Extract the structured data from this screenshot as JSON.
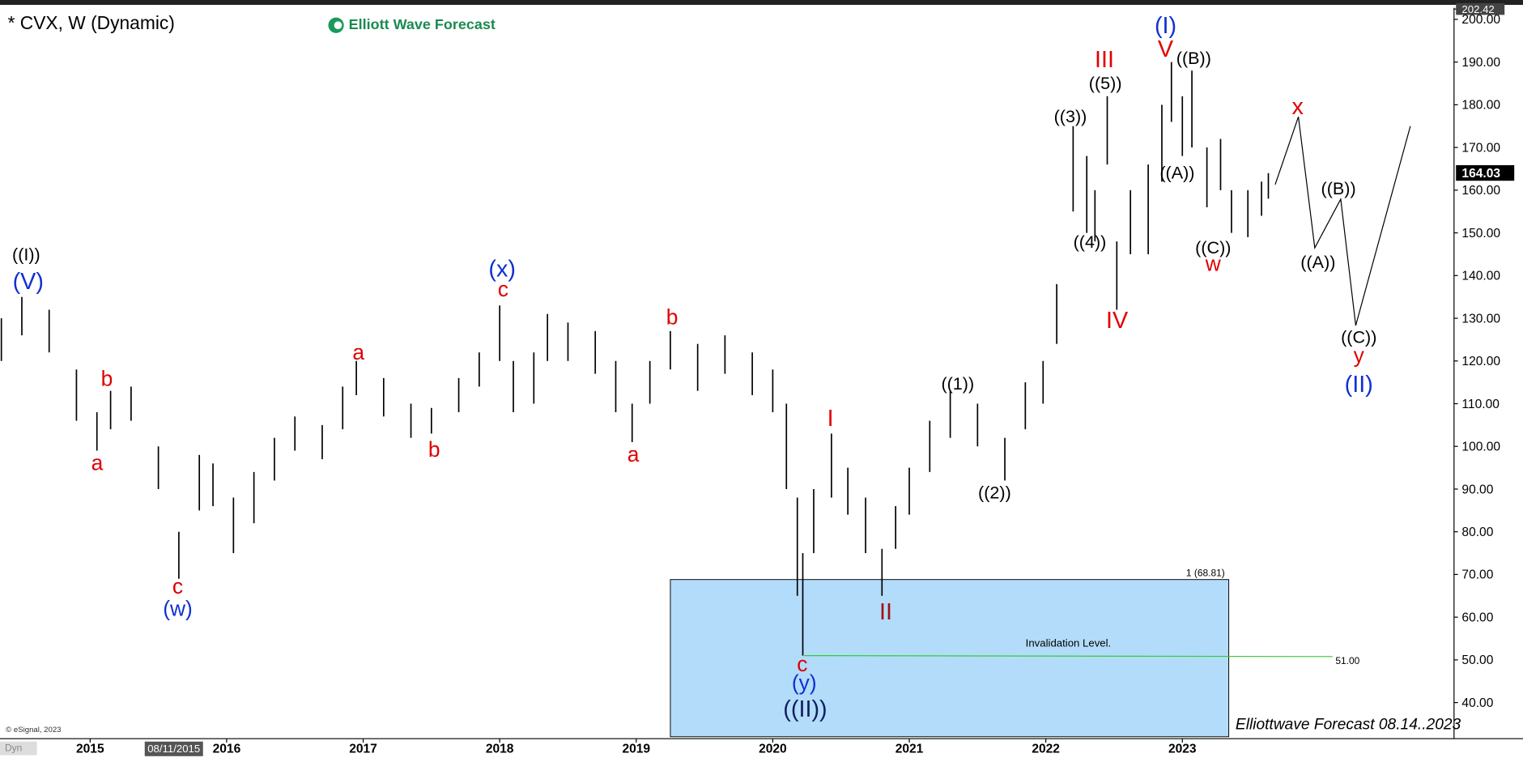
{
  "chart_data": {
    "type": "ohlc",
    "title": "* CVX, W (Dynamic)",
    "brand": "Elliott Wave Forecast",
    "footer": "Elliottwave Forecast  08.14..2023",
    "copyright": "© eSignal, 2023",
    "mode_label": "Dyn",
    "cursor_date": "08/11/2015",
    "bar_color": "#000000",
    "x": [
      2014.35,
      2014.5,
      2014.7,
      2014.9,
      2015.05,
      2015.15,
      2015.3,
      2015.5,
      2015.65,
      2015.8,
      2015.9,
      2016.05,
      2016.2,
      2016.35,
      2016.5,
      2016.7,
      2016.85,
      2016.95,
      2017.15,
      2017.35,
      2017.5,
      2017.7,
      2017.85,
      2018.0,
      2018.1,
      2018.25,
      2018.35,
      2018.5,
      2018.7,
      2018.85,
      2018.97,
      2019.1,
      2019.25,
      2019.45,
      2019.65,
      2019.85,
      2020.0,
      2020.1,
      2020.18,
      2020.22,
      2020.3,
      2020.43,
      2020.55,
      2020.68,
      2020.8,
      2020.9,
      2021.0,
      2021.15,
      2021.3,
      2021.5,
      2021.7,
      2021.85,
      2021.98,
      2022.08,
      2022.2,
      2022.3,
      2022.36,
      2022.45,
      2022.52,
      2022.62,
      2022.75,
      2022.85,
      2022.92,
      2023.0,
      2023.07,
      2023.18,
      2023.28,
      2023.36,
      2023.48,
      2023.58,
      2023.63
    ],
    "low": [
      120,
      126,
      122,
      106,
      99,
      104,
      106,
      90,
      69,
      85,
      86,
      75,
      82,
      92,
      99,
      97,
      104,
      112,
      107,
      102,
      103,
      108,
      114,
      120,
      108,
      110,
      120,
      120,
      117,
      108,
      101,
      110,
      118,
      113,
      117,
      112,
      108,
      90,
      65,
      51,
      75,
      88,
      84,
      75,
      65,
      76,
      84,
      94,
      102,
      100,
      92,
      104,
      110,
      124,
      155,
      150,
      148,
      166,
      132,
      145,
      145,
      162,
      176,
      168,
      170,
      156,
      160,
      150,
      149,
      154,
      158
    ],
    "high": [
      130,
      135,
      132,
      118,
      108,
      113,
      114,
      100,
      80,
      98,
      96,
      88,
      94,
      102,
      107,
      105,
      114,
      120,
      116,
      110,
      109,
      116,
      122,
      133,
      120,
      122,
      131,
      129,
      127,
      120,
      110,
      120,
      127,
      124,
      126,
      122,
      118,
      110,
      88,
      75,
      90,
      103,
      95,
      88,
      76,
      86,
      95,
      106,
      113,
      110,
      102,
      115,
      120,
      138,
      175,
      168,
      160,
      182,
      148,
      160,
      166,
      180,
      190,
      182,
      188,
      170,
      172,
      160,
      160,
      162,
      164
    ],
    "projection": {
      "color": "#000000",
      "x": [
        2023.68,
        2023.85,
        2023.97,
        2024.16,
        2024.27,
        2024.67
      ],
      "values": [
        161.3,
        177.2,
        146.5,
        157.9,
        128.3,
        175.0
      ]
    },
    "zone": {
      "label": "1 (68.81)",
      "top": 68.81,
      "x_start": 2019.25,
      "x_end": 2023.34,
      "color": "#b3dcfa"
    },
    "invalidation": {
      "value": 51,
      "label": "51.00",
      "text": "Invalidation Level.",
      "x_start": 2020.23,
      "x_end": 2024.1,
      "color": "#33cc33"
    },
    "last_price": {
      "value": 164.03,
      "label": "164.03"
    },
    "xlim": [
      2014.34,
      2024.99
    ],
    "ylim": [
      32,
      202.42
    ],
    "yticks": [
      {
        "value": 40,
        "label": "40.00"
      },
      {
        "value": 50,
        "label": "50.00"
      },
      {
        "value": 60,
        "label": "60.00"
      },
      {
        "value": 70,
        "label": "70.00"
      },
      {
        "value": 80,
        "label": "80.00"
      },
      {
        "value": 90,
        "label": "90.00"
      },
      {
        "value": 100,
        "label": "100.00"
      },
      {
        "value": 110,
        "label": "110.00"
      },
      {
        "value": 120,
        "label": "120.00"
      },
      {
        "value": 130,
        "label": "130.00"
      },
      {
        "value": 140,
        "label": "140.00"
      },
      {
        "value": 150,
        "label": "150.00"
      },
      {
        "value": 160,
        "label": "160.00"
      },
      {
        "value": 170,
        "label": "170.00"
      },
      {
        "value": 180,
        "label": "180.00"
      },
      {
        "value": 190,
        "label": "190.00"
      },
      {
        "value": 200,
        "label": "200.00"
      },
      {
        "value": 202.42,
        "label": "202.42"
      }
    ],
    "xticks": [
      2015,
      2016,
      2017,
      2018,
      2019,
      2020,
      2021,
      2022,
      2023
    ],
    "annotations": [
      {
        "text": "((I))",
        "color": "#000000"
      },
      {
        "text": "(V)",
        "color": "#1030d0"
      },
      {
        "text": "b",
        "color": "#e00000"
      },
      {
        "text": "a",
        "color": "#e00000"
      },
      {
        "text": "c",
        "color": "#e00000"
      },
      {
        "text": "(w)",
        "color": "#1030d0"
      },
      {
        "text": "a",
        "color": "#e00000"
      },
      {
        "text": "b",
        "color": "#e00000"
      },
      {
        "text": "(x)",
        "color": "#1030d0"
      },
      {
        "text": "c",
        "color": "#e00000"
      },
      {
        "text": "b",
        "color": "#e00000"
      },
      {
        "text": "a",
        "color": "#e00000"
      },
      {
        "text": "I",
        "color": "#e00000"
      },
      {
        "text": "II",
        "color": "#a01010"
      },
      {
        "text": "c",
        "color": "#e00000"
      },
      {
        "text": "(y)",
        "color": "#1030d0"
      },
      {
        "text": "((II))",
        "color": "#102060"
      },
      {
        "text": "((1))",
        "color": "#000000"
      },
      {
        "text": "((2))",
        "color": "#000000"
      },
      {
        "text": "((3))",
        "color": "#000000"
      },
      {
        "text": "((4))",
        "color": "#000000"
      },
      {
        "text": "((5))",
        "color": "#000000"
      },
      {
        "text": "III",
        "color": "#e00000"
      },
      {
        "text": "IV",
        "color": "#e00000"
      },
      {
        "text": "(I)",
        "color": "#1030d0"
      },
      {
        "text": "V",
        "color": "#e00000"
      },
      {
        "text": "((B))",
        "color": "#000000"
      },
      {
        "text": "((A))",
        "color": "#000000"
      },
      {
        "text": "((C))",
        "color": "#000000"
      },
      {
        "text": "w",
        "color": "#e00000"
      },
      {
        "text": "x",
        "color": "#e00000"
      },
      {
        "text": "((B))",
        "color": "#000000"
      },
      {
        "text": "((A))",
        "color": "#000000"
      },
      {
        "text": "((C))",
        "color": "#000000"
      },
      {
        "text": "y",
        "color": "#e00000"
      },
      {
        "text": "(II)",
        "color": "#1030d0"
      }
    ]
  }
}
